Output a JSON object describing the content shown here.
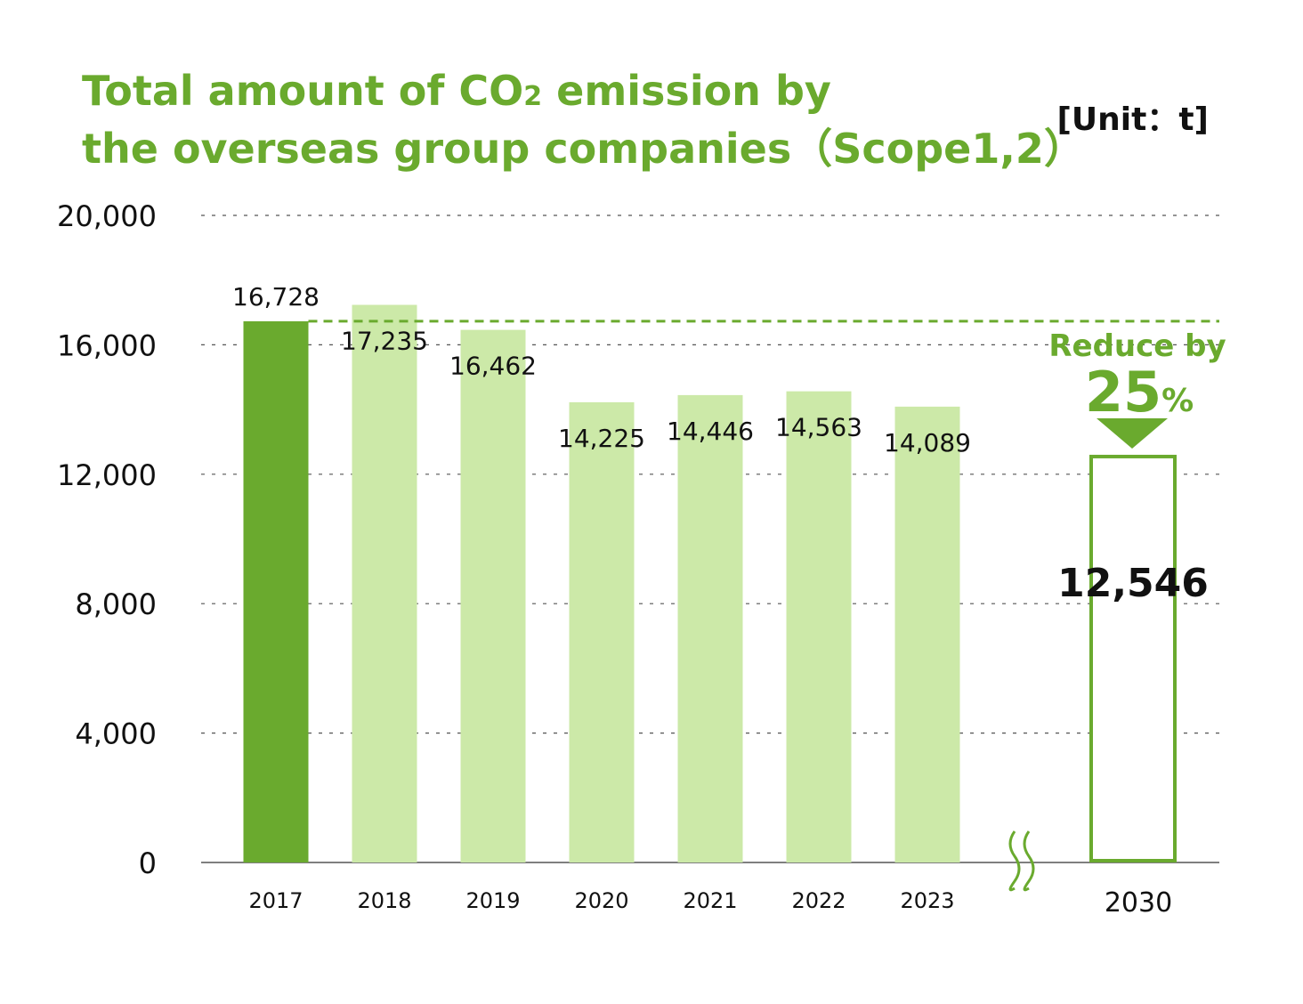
{
  "colors": {
    "accent": "#6aaa2e",
    "bar_base": "#6aaa2e",
    "bar_light": "#cce9a8",
    "grid": "#555555",
    "text": "#111111"
  },
  "chart_data": {
    "type": "bar",
    "title_line1_pre": "Total amount of CO",
    "title_line1_sub": "2",
    "title_line1_post": " emission by",
    "title_line2": "the overseas group companies（Scope1,2）",
    "unit_label": "[Unit：t]",
    "categories": [
      "2017",
      "2018",
      "2019",
      "2020",
      "2021",
      "2022",
      "2023"
    ],
    "values": [
      16728,
      17235,
      16462,
      14225,
      14446,
      14563,
      14089
    ],
    "value_labels": [
      "16,728",
      "17,235",
      "16,462",
      "14,225",
      "14,446",
      "14,563",
      "14,089"
    ],
    "yticks": [
      0,
      4000,
      8000,
      12000,
      16000,
      20000
    ],
    "ytick_labels": [
      "0",
      "4,000",
      "8,000",
      "12,000",
      "16,000",
      "20,000"
    ],
    "ylim": [
      0,
      20000
    ],
    "grid": true,
    "target": {
      "category": "2030",
      "value": 12546,
      "value_label": "12,546",
      "reduce_text": "Reduce by",
      "reduce_pct": "25",
      "reduce_sign": "%"
    },
    "xlabel": "",
    "ylabel": ""
  }
}
